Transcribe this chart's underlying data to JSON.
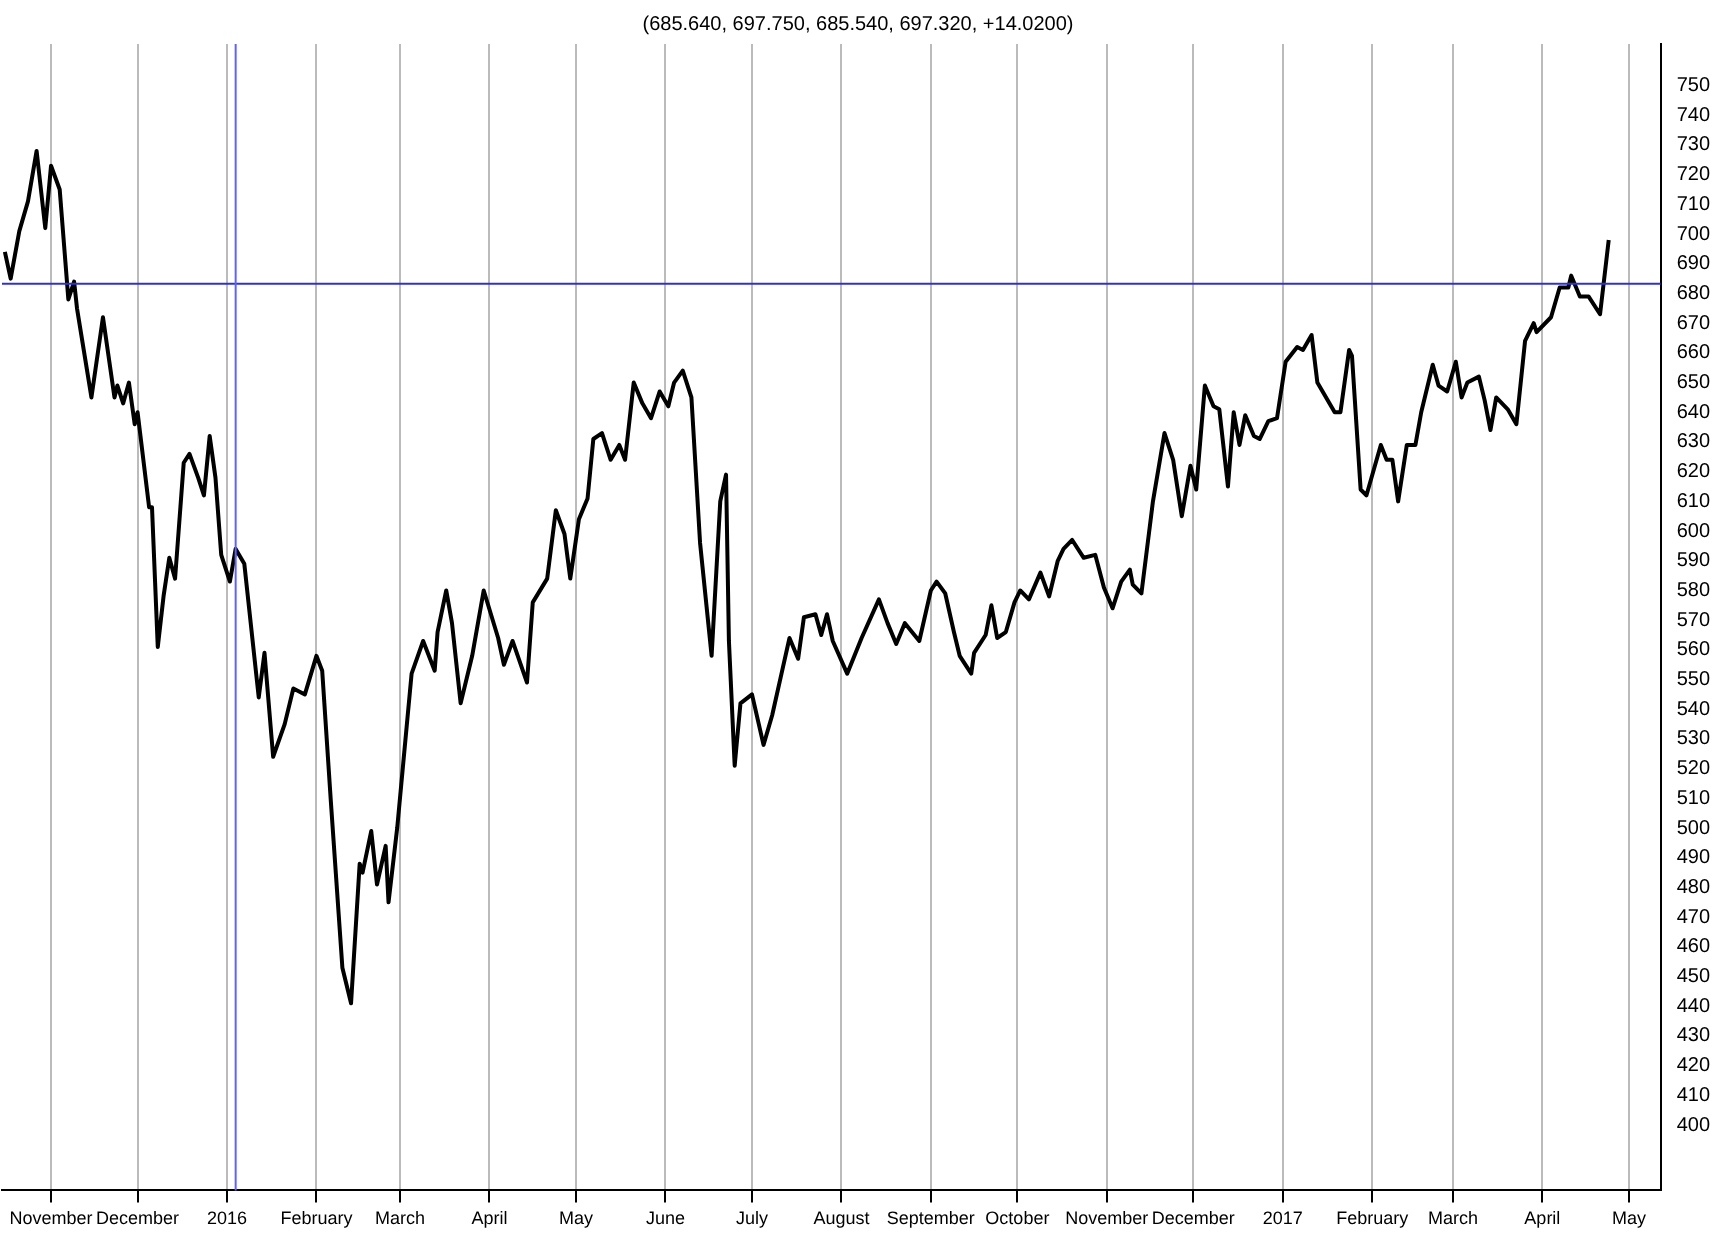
{
  "chart_data": {
    "type": "line",
    "title": "(685.640, 697.750, 685.540, 697.320, +14.0200)",
    "series": [
      {
        "color": "#000000",
        "x": [
          "2015-10-16",
          "2015-10-18",
          "2015-10-21",
          "2015-10-24",
          "2015-10-27",
          "2015-10-30",
          "2015-11-01",
          "2015-11-04",
          "2015-11-07",
          "2015-11-09",
          "2015-11-10",
          "2015-11-15",
          "2015-11-19",
          "2015-11-23",
          "2015-11-24",
          "2015-11-26",
          "2015-11-28",
          "2015-11-30",
          "2015-12-01",
          "2015-12-05",
          "2015-12-06",
          "2015-12-08",
          "2015-12-10",
          "2015-12-12",
          "2015-12-14",
          "2015-12-17",
          "2015-12-19",
          "2015-12-22",
          "2015-12-24",
          "2015-12-26",
          "2015-12-28",
          "2015-12-30",
          "2016-01-02",
          "2016-01-04",
          "2016-01-07",
          "2016-01-12",
          "2016-01-14",
          "2016-01-17",
          "2016-01-21",
          "2016-01-24",
          "2016-01-28",
          "2016-02-01",
          "2016-02-03",
          "2016-02-06",
          "2016-02-10",
          "2016-02-13",
          "2016-02-16",
          "2016-02-17",
          "2016-02-20",
          "2016-02-22",
          "2016-02-25",
          "2016-02-26",
          "2016-02-29",
          "2016-03-05",
          "2016-03-09",
          "2016-03-13",
          "2016-03-14",
          "2016-03-17",
          "2016-03-19",
          "2016-03-22",
          "2016-03-26",
          "2016-03-30",
          "2016-04-04",
          "2016-04-06",
          "2016-04-09",
          "2016-04-14",
          "2016-04-16",
          "2016-04-21",
          "2016-04-24",
          "2016-04-27",
          "2016-04-29",
          "2016-05-02",
          "2016-05-05",
          "2016-05-07",
          "2016-05-10",
          "2016-05-13",
          "2016-05-16",
          "2016-05-18",
          "2016-05-21",
          "2016-05-24",
          "2016-05-27",
          "2016-05-30",
          "2016-06-02",
          "2016-06-04",
          "2016-06-07",
          "2016-06-10",
          "2016-06-13",
          "2016-06-17",
          "2016-06-20",
          "2016-06-22",
          "2016-06-23",
          "2016-06-25",
          "2016-06-27",
          "2016-07-01",
          "2016-07-05",
          "2016-07-08",
          "2016-07-11",
          "2016-07-14",
          "2016-07-17",
          "2016-07-19",
          "2016-07-23",
          "2016-07-25",
          "2016-07-27",
          "2016-07-29",
          "2016-08-03",
          "2016-08-08",
          "2016-08-14",
          "2016-08-17",
          "2016-08-20",
          "2016-08-23",
          "2016-08-28",
          "2016-09-01",
          "2016-09-03",
          "2016-09-06",
          "2016-09-09",
          "2016-09-11",
          "2016-09-15",
          "2016-09-16",
          "2016-09-20",
          "2016-09-22",
          "2016-09-24",
          "2016-09-27",
          "2016-09-30",
          "2016-10-02",
          "2016-10-05",
          "2016-10-09",
          "2016-10-12",
          "2016-10-15",
          "2016-10-17",
          "2016-10-20",
          "2016-10-24",
          "2016-10-28",
          "2016-10-31",
          "2016-11-03",
          "2016-11-06",
          "2016-11-09",
          "2016-11-10",
          "2016-11-13",
          "2016-11-17",
          "2016-11-21",
          "2016-11-24",
          "2016-11-27",
          "2016-11-30",
          "2016-12-02",
          "2016-12-05",
          "2016-12-08",
          "2016-12-10",
          "2016-12-13",
          "2016-12-15",
          "2016-12-17",
          "2016-12-19",
          "2016-12-22",
          "2016-12-24",
          "2016-12-27",
          "2016-12-30",
          "2017-01-02",
          "2017-01-06",
          "2017-01-08",
          "2017-01-11",
          "2017-01-13",
          "2017-01-19",
          "2017-01-21",
          "2017-01-24",
          "2017-01-25",
          "2017-01-28",
          "2017-01-30",
          "2017-02-04",
          "2017-02-06",
          "2017-02-08",
          "2017-02-10",
          "2017-02-13",
          "2017-02-16",
          "2017-02-18",
          "2017-02-22",
          "2017-02-24",
          "2017-02-27",
          "2017-03-02",
          "2017-03-04",
          "2017-03-06",
          "2017-03-10",
          "2017-03-12",
          "2017-03-14",
          "2017-03-16",
          "2017-03-20",
          "2017-03-23",
          "2017-03-26",
          "2017-03-29",
          "2017-03-30",
          "2017-04-04",
          "2017-04-07",
          "2017-04-10",
          "2017-04-11",
          "2017-04-14",
          "2017-04-17",
          "2017-04-21",
          "2017-04-24"
        ],
        "values": [
          694,
          685,
          701,
          711,
          728,
          702,
          723,
          715,
          678,
          684,
          675,
          645,
          672,
          645,
          649,
          643,
          650,
          636,
          640,
          608,
          608,
          561,
          578,
          591,
          584,
          623,
          626,
          618,
          612,
          632,
          618,
          592,
          583,
          594,
          589,
          544,
          559,
          524,
          535,
          547,
          545,
          558,
          553,
          509,
          453,
          441,
          488,
          485,
          499,
          481,
          494,
          475,
          500,
          552,
          563,
          553,
          566,
          580,
          569,
          542,
          558,
          580,
          564,
          555,
          563,
          549,
          576,
          584,
          607,
          599,
          584,
          604,
          611,
          631,
          633,
          624,
          629,
          624,
          650,
          643,
          638,
          647,
          642,
          650,
          654,
          645,
          596,
          558,
          610,
          619,
          563,
          521,
          542,
          545,
          528,
          538,
          551,
          564,
          557,
          571,
          572,
          565,
          572,
          563,
          552,
          564,
          577,
          569,
          562,
          569,
          563,
          580,
          583,
          579,
          566,
          558,
          552,
          559,
          565,
          575,
          564,
          566,
          576,
          580,
          577,
          586,
          578,
          590,
          594,
          597,
          591,
          592,
          581,
          574,
          583,
          587,
          582,
          579,
          610,
          633,
          624,
          605,
          622,
          614,
          649,
          642,
          641,
          615,
          640,
          629,
          639,
          632,
          631,
          637,
          638,
          657,
          662,
          661,
          666,
          650,
          640,
          640,
          661,
          659,
          614,
          612,
          629,
          624,
          624,
          610,
          629,
          629,
          640,
          656,
          649,
          647,
          657,
          645,
          650,
          652,
          644,
          634,
          645,
          641,
          636,
          664,
          670,
          667,
          672,
          682,
          682,
          686,
          679,
          679,
          673,
          698
        ]
      }
    ],
    "xlim": [
      "2015-10-15",
      "2017-05-12"
    ],
    "xticks": [
      {
        "value": "2015-11-01",
        "label": "November"
      },
      {
        "value": "2015-12-01",
        "label": "December"
      },
      {
        "value": "2016-01-01",
        "label": "2016"
      },
      {
        "value": "2016-02-01",
        "label": "February"
      },
      {
        "value": "2016-03-01",
        "label": "March"
      },
      {
        "value": "2016-04-01",
        "label": "April"
      },
      {
        "value": "2016-05-01",
        "label": "May"
      },
      {
        "value": "2016-06-01",
        "label": "June"
      },
      {
        "value": "2016-07-01",
        "label": "July"
      },
      {
        "value": "2016-08-01",
        "label": "August"
      },
      {
        "value": "2016-09-01",
        "label": "September"
      },
      {
        "value": "2016-10-01",
        "label": "October"
      },
      {
        "value": "2016-11-01",
        "label": "November"
      },
      {
        "value": "2016-12-01",
        "label": "December"
      },
      {
        "value": "2017-01-01",
        "label": "2017"
      },
      {
        "value": "2017-02-01",
        "label": "February"
      },
      {
        "value": "2017-03-01",
        "label": "March"
      },
      {
        "value": "2017-04-01",
        "label": "April"
      },
      {
        "value": "2017-05-01",
        "label": "May"
      }
    ],
    "ylim": [
      378,
      764
    ],
    "yticks": [
      400,
      410,
      420,
      430,
      440,
      450,
      460,
      470,
      480,
      490,
      500,
      510,
      520,
      530,
      540,
      550,
      560,
      570,
      580,
      590,
      600,
      610,
      620,
      630,
      640,
      650,
      660,
      670,
      680,
      690,
      700,
      710,
      720,
      730,
      740,
      750
    ],
    "ref_lines": [
      {
        "axis": "y",
        "value": 683.3,
        "color": "#3030d0"
      },
      {
        "axis": "x",
        "value": "2016-01-04",
        "color": "#6060ff"
      }
    ],
    "grid": "x",
    "legend": false,
    "marker": "none",
    "line_style": "solid"
  }
}
